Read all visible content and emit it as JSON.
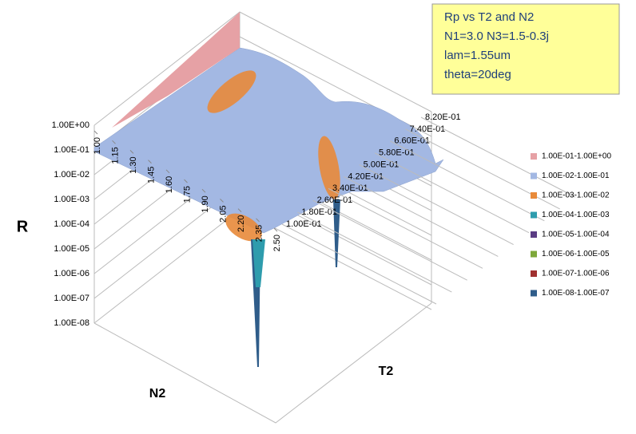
{
  "chart_data": {
    "type": "surface",
    "title_lines": [
      "Rp vs T2 and N2",
      "N1=3.0  N3=1.5-0.3j",
      "lam=1.55um",
      "theta=20deg"
    ],
    "zlabel": "R",
    "xlabel": "N2",
    "ylabel": "T2",
    "zscale": "log",
    "zlim": [
      1e-08,
      1
    ],
    "zticks": [
      {
        "value": 1,
        "label": "1.00E+00"
      },
      {
        "value": 0.1,
        "label": "1.00E-01"
      },
      {
        "value": 0.01,
        "label": "1.00E-02"
      },
      {
        "value": 0.001,
        "label": "1.00E-03"
      },
      {
        "value": 0.0001,
        "label": "1.00E-04"
      },
      {
        "value": 1e-05,
        "label": "1.00E-05"
      },
      {
        "value": 1e-06,
        "label": "1.00E-06"
      },
      {
        "value": 1e-07,
        "label": "1.00E-07"
      },
      {
        "value": 1e-08,
        "label": "1.00E-08"
      }
    ],
    "xlim": [
      1,
      2.5
    ],
    "xticks": [
      {
        "value": 1,
        "label": "1.00"
      },
      1.15,
      {
        "value": 1.3,
        "label": "1.30"
      },
      1.45,
      {
        "value": 1.6,
        "label": "1.60"
      },
      1.75,
      {
        "value": 1.9,
        "label": "1.90"
      },
      2.05,
      {
        "value": 2.2,
        "label": "2.20"
      },
      2.35,
      {
        "value": 2.5,
        "label": "2.50"
      }
    ],
    "ylim": [
      0.1,
      0.82
    ],
    "yticks": [
      {
        "value": 0.1,
        "label": "1.00E-01"
      },
      {
        "value": 0.18,
        "label": "1.80E-01"
      },
      {
        "value": 0.26,
        "label": "2.60E-01"
      },
      {
        "value": 0.34,
        "label": "3.40E-01"
      },
      {
        "value": 0.42,
        "label": "4.20E-01"
      },
      {
        "value": 0.5,
        "label": "5.00E-01"
      },
      {
        "value": 0.58,
        "label": "5.80E-01"
      },
      {
        "value": 0.66,
        "label": "6.60E-01"
      },
      {
        "value": 0.74,
        "label": "7.40E-01"
      },
      {
        "value": 0.82,
        "label": "8.20E-01"
      }
    ],
    "legend": [
      {
        "name": "1.00E-01-1.00E+00",
        "color": "#e6a1a5"
      },
      {
        "name": "1.00E-02-1.00E-01",
        "color": "#a3b8e3"
      },
      {
        "name": "1.00E-03-1.00E-02",
        "color": "#e88a3a"
      },
      {
        "name": "1.00E-04-1.00E-03",
        "color": "#2e9cad"
      },
      {
        "name": "1.00E-05-1.00E-04",
        "color": "#5b3d84"
      },
      {
        "name": "1.00E-06-1.00E-05",
        "color": "#7ea83a"
      },
      {
        "name": "1.00E-07-1.00E-06",
        "color": "#a0302f"
      },
      {
        "name": "1.00E-08-1.00E-07",
        "color": "#2f5d8a"
      }
    ]
  }
}
